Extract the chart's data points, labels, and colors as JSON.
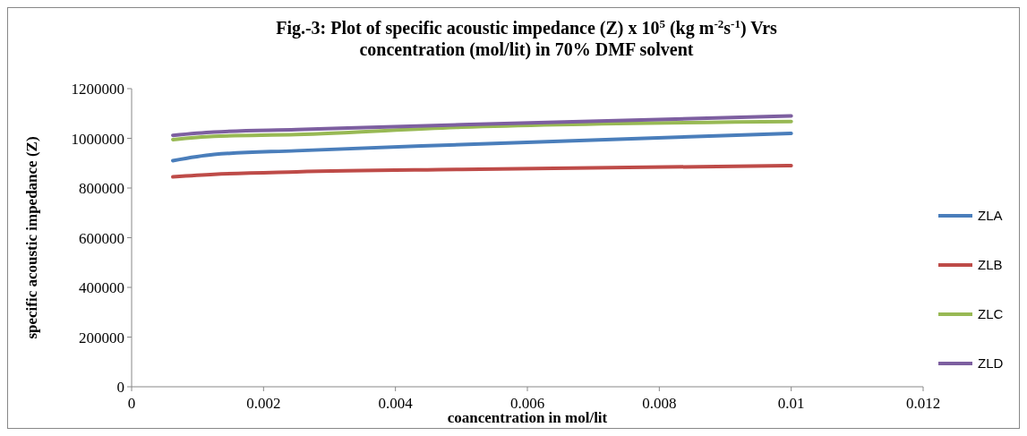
{
  "chart_data": {
    "type": "line",
    "title": "Fig.-3: Plot of specific acoustic impedance (Z) x 10$^{5}$   (kg m$^{-2}$s$^{-1}$) Vrs\nconcentration (mol/lit) in 70% DMF solvent",
    "xlabel": "coancentration in mol/lit",
    "ylabel": "specific acoustic impedance (Z)",
    "x": [
      0.000625,
      0.00125,
      0.0025,
      0.005,
      0.01
    ],
    "series": [
      {
        "name": "ZLA",
        "color": "#4a7ebb",
        "values": [
          910000,
          935000,
          950000,
          975000,
          1020000
        ]
      },
      {
        "name": "ZLB",
        "color": "#be4b48",
        "values": [
          845000,
          855000,
          865000,
          875000,
          890000
        ]
      },
      {
        "name": "ZLC",
        "color": "#98b954",
        "values": [
          995000,
          1008000,
          1015000,
          1045000,
          1068000
        ]
      },
      {
        "name": "ZLD",
        "color": "#7d5fa0",
        "values": [
          1012000,
          1025000,
          1035000,
          1055000,
          1090000
        ]
      }
    ],
    "xlim": [
      0,
      0.012
    ],
    "xticks": [
      0,
      0.002,
      0.004,
      0.006,
      0.008,
      0.01,
      0.012
    ],
    "ylim": [
      0,
      1200000
    ],
    "yticks": [
      0,
      200000,
      400000,
      600000,
      800000,
      1000000,
      1200000
    ],
    "grid": false,
    "legend": "right",
    "marker": "none",
    "line_style": "solid"
  }
}
